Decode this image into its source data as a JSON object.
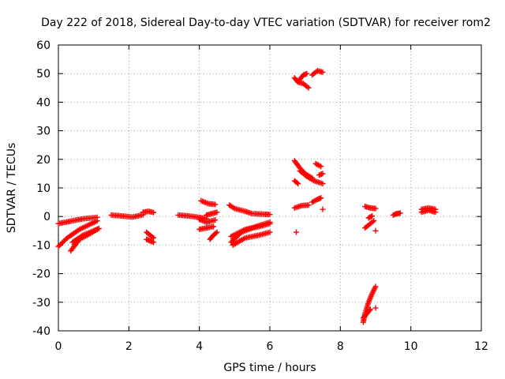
{
  "chart_data": {
    "type": "scatter",
    "title": "Day 222 of 2018, Sidereal Day-to-day VTEC variation (SDTVAR) for receiver rom2",
    "xlabel": "GPS time / hours",
    "ylabel": "SDTVAR / TECUs",
    "xlim": [
      0,
      12
    ],
    "ylim": [
      -40,
      60
    ],
    "xticks": [
      "0",
      "2",
      "4",
      "6",
      "8",
      "10",
      "12"
    ],
    "yticks": [
      "-40",
      "-30",
      "-20",
      "-10",
      "0",
      "10",
      "20",
      "30",
      "40",
      "50",
      "60"
    ],
    "grid": true,
    "marker": "+",
    "color": "#ff0000",
    "arcs": [
      {
        "x": [
          0.0,
          0.2,
          0.4,
          0.7,
          1.1
        ],
        "y": [
          -2.5,
          -2.0,
          -1.5,
          -0.8,
          -0.3
        ]
      },
      {
        "x": [
          0.0,
          0.25,
          0.6,
          1.1
        ],
        "y": [
          -10.5,
          -7.5,
          -4.5,
          -1.5
        ]
      },
      {
        "x": [
          0.35,
          0.6,
          0.9,
          1.1
        ],
        "y": [
          -12.0,
          -8.0,
          -6.0,
          -4.5
        ]
      },
      {
        "x": [
          0.4,
          0.7,
          1.0,
          1.15
        ],
        "y": [
          -9.0,
          -6.5,
          -5.0,
          -4.2
        ]
      },
      {
        "x": [
          1.5,
          1.8,
          2.1,
          2.4
        ],
        "y": [
          0.5,
          0.2,
          -0.2,
          0.6
        ]
      },
      {
        "x": [
          2.4,
          2.55,
          2.7
        ],
        "y": [
          1.5,
          1.8,
          1.4
        ]
      },
      {
        "x": [
          2.5,
          2.6,
          2.7
        ],
        "y": [
          -5.5,
          -6.5,
          -7.5
        ]
      },
      {
        "x": [
          2.5,
          2.6,
          2.7
        ],
        "y": [
          -8.0,
          -8.5,
          -9.0
        ]
      },
      {
        "x": [
          3.4,
          3.7,
          4.0,
          4.2
        ],
        "y": [
          0.5,
          0.2,
          -0.3,
          -0.8
        ]
      },
      {
        "x": [
          4.0,
          4.2,
          4.4
        ],
        "y": [
          -4.5,
          -4.0,
          -3.5
        ]
      },
      {
        "x": [
          4.05,
          4.25,
          4.45
        ],
        "y": [
          5.5,
          4.5,
          4.2
        ]
      },
      {
        "x": [
          4.0,
          4.2,
          4.45
        ],
        "y": [
          -1.0,
          -2.0,
          -1.2
        ]
      },
      {
        "x": [
          4.3,
          4.4,
          4.5
        ],
        "y": [
          -8.0,
          -6.5,
          -5.5
        ]
      },
      {
        "x": [
          4.2,
          4.35,
          4.5
        ],
        "y": [
          0.5,
          1.0,
          1.5
        ]
      },
      {
        "x": [
          4.85,
          5.0,
          5.3,
          5.5
        ],
        "y": [
          4.0,
          2.8,
          1.8,
          1.0
        ]
      },
      {
        "x": [
          5.55,
          5.8,
          6.0
        ],
        "y": [
          1.0,
          0.8,
          0.7
        ]
      },
      {
        "x": [
          4.9,
          5.3,
          5.7,
          6.0
        ],
        "y": [
          -7.0,
          -4.5,
          -3.5,
          -2.5
        ]
      },
      {
        "x": [
          4.95,
          5.3,
          5.7,
          6.0
        ],
        "y": [
          -10.0,
          -7.5,
          -6.5,
          -5.5
        ]
      },
      {
        "x": [
          4.9,
          5.2,
          5.6,
          6.0
        ],
        "y": [
          -9.0,
          -5.5,
          -3.5,
          -2.0
        ]
      },
      {
        "x": [
          6.7,
          6.8,
          6.95,
          7.1
        ],
        "y": [
          48.5,
          47.0,
          46.5,
          45.0
        ]
      },
      {
        "x": [
          6.85,
          6.95,
          7.05
        ],
        "y": [
          48.0,
          49.5,
          50.0
        ]
      },
      {
        "x": [
          7.2,
          7.35,
          7.5
        ],
        "y": [
          49.5,
          51.0,
          50.5
        ]
      },
      {
        "x": [
          6.7,
          6.85,
          7.0,
          7.2
        ],
        "y": [
          19.5,
          17.0,
          15.0,
          13.5
        ]
      },
      {
        "x": [
          6.85,
          7.05,
          7.25,
          7.5
        ],
        "y": [
          16.0,
          14.0,
          12.5,
          11.5
        ]
      },
      {
        "x": [
          6.7,
          6.8
        ],
        "y": [
          12.5,
          11.5
        ]
      },
      {
        "x": [
          7.3,
          7.45
        ],
        "y": [
          18.5,
          17.5
        ]
      },
      {
        "x": [
          7.4,
          7.5
        ],
        "y": [
          14.5,
          15.0
        ]
      },
      {
        "x": [
          6.7,
          6.9,
          7.1
        ],
        "y": [
          3.0,
          3.8,
          4.0
        ]
      },
      {
        "x": [
          7.2,
          7.35,
          7.45
        ],
        "y": [
          5.0,
          6.0,
          6.5
        ]
      },
      {
        "x": [
          7.5
        ],
        "y": [
          2.5
        ]
      },
      {
        "x": [
          6.75
        ],
        "y": [
          -5.5
        ]
      },
      {
        "x": [
          8.7,
          8.85,
          9.0
        ],
        "y": [
          3.5,
          3.0,
          2.8
        ]
      },
      {
        "x": [
          8.7,
          8.8,
          8.95
        ],
        "y": [
          -4.0,
          -3.0,
          -1.5
        ]
      },
      {
        "x": [
          8.8,
          8.9
        ],
        "y": [
          -0.5,
          0.2
        ]
      },
      {
        "x": [
          9.0
        ],
        "y": [
          -5.0
        ]
      },
      {
        "x": [
          8.65,
          8.7,
          8.8,
          8.9,
          9.0
        ],
        "y": [
          -37.0,
          -34.0,
          -30.0,
          -27.0,
          -24.5
        ]
      },
      {
        "x": [
          8.65,
          8.75,
          8.85
        ],
        "y": [
          -35.5,
          -34.0,
          -32.5
        ]
      },
      {
        "x": [
          9.0
        ],
        "y": [
          -32.0
        ]
      },
      {
        "x": [
          9.5,
          9.6,
          9.7
        ],
        "y": [
          0.5,
          1.0,
          1.2
        ]
      },
      {
        "x": [
          10.3,
          10.5,
          10.7
        ],
        "y": [
          1.5,
          2.2,
          1.5
        ]
      },
      {
        "x": [
          10.3,
          10.5,
          10.7
        ],
        "y": [
          2.5,
          3.0,
          2.5
        ]
      }
    ]
  }
}
